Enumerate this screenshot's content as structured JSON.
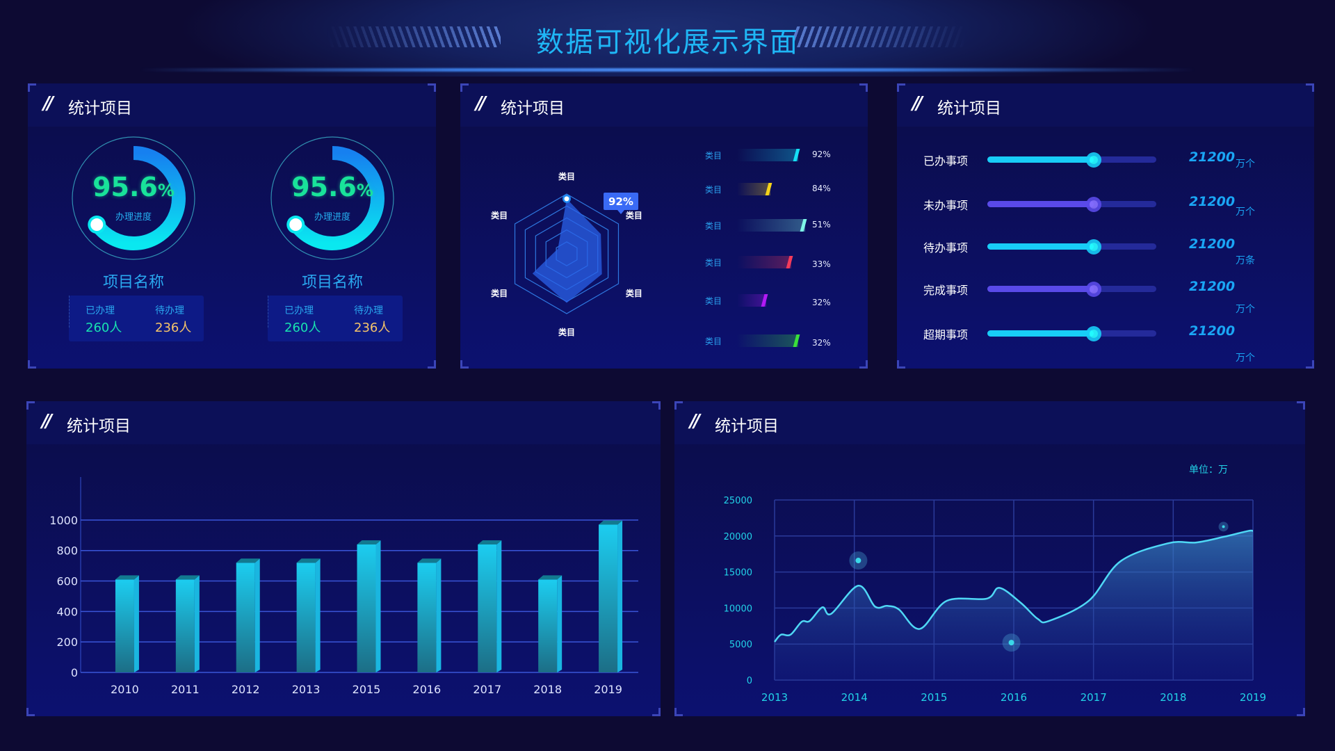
{
  "header": {
    "title": "数据可视化展示界面"
  },
  "panel1": {
    "title": "统计项目",
    "gauges": [
      {
        "value": "95.6",
        "unit": "%",
        "progress": 95.6,
        "caption": "办理进度",
        "name": "项目名称",
        "done_label": "已办理",
        "done_value": "260人",
        "pending_label": "待办理",
        "pending_value": "236人"
      },
      {
        "value": "95.6",
        "unit": "%",
        "progress": 95.6,
        "caption": "办理进度",
        "name": "项目名称",
        "done_label": "已办理",
        "done_value": "260人",
        "pending_label": "待办理",
        "pending_value": "236人"
      }
    ],
    "colors": {
      "value": "#19e39a",
      "done": "#19e3b0",
      "pending": "#f5c46a"
    }
  },
  "panel2": {
    "title": "统计项目",
    "radar": {
      "indicators": [
        "类目",
        "类目",
        "类目",
        "类目",
        "类目",
        "类目"
      ],
      "values": [
        92,
        66,
        68,
        82,
        66,
        17
      ],
      "max": 100,
      "tooltip": "92%"
    },
    "bars": [
      {
        "label": "类目",
        "percent": "92%",
        "fill": 0.88,
        "color": "#16e0f5"
      },
      {
        "label": "类目",
        "percent": "84%",
        "fill": 0.48,
        "color": "#f5d31a"
      },
      {
        "label": "类目",
        "percent": "51%",
        "fill": 0.98,
        "color": "#7ef5e8"
      },
      {
        "label": "类目",
        "percent": "33%",
        "fill": 0.78,
        "color": "#f53a5a"
      },
      {
        "label": "类目",
        "percent": "32%",
        "fill": 0.42,
        "color": "#b21af5"
      },
      {
        "label": "类目",
        "percent": "32%",
        "fill": 0.88,
        "color": "#3ae03a"
      }
    ]
  },
  "panel3": {
    "title": "统计项目",
    "items": [
      {
        "label": "已办事项",
        "value": "21200",
        "unit": "万个",
        "progress": 0.63,
        "color": "#18cdf7"
      },
      {
        "label": "未办事项",
        "value": "21200",
        "unit": "万个",
        "progress": 0.63,
        "color": "#5a4ae8"
      },
      {
        "label": "待办事项",
        "value": "21200",
        "unit": "万条",
        "progress": 0.63,
        "color": "#18cdf7"
      },
      {
        "label": "完成事项",
        "value": "21200",
        "unit": "万个",
        "progress": 0.63,
        "color": "#5a4ae8"
      },
      {
        "label": "超期事项",
        "value": "21200",
        "unit": "万个",
        "progress": 0.63,
        "color": "#18cdf7"
      }
    ]
  },
  "panel4": {
    "title": "统计项目"
  },
  "panel5": {
    "title": "统计项目"
  },
  "chart_data": [
    {
      "type": "bar",
      "categories": [
        "2010",
        "2011",
        "2012",
        "2013",
        "2015",
        "2016",
        "2017",
        "2018",
        "2019"
      ],
      "values": [
        610,
        610,
        720,
        720,
        840,
        720,
        840,
        610,
        970
      ],
      "yticks": [
        "0",
        "200",
        "400",
        "600",
        "800",
        "1000"
      ],
      "ylim": [
        0,
        1100
      ],
      "grid": true,
      "color": "#1bcdf0"
    },
    {
      "type": "area",
      "unit_label": "单位：万",
      "xticks": [
        "2013",
        "2014",
        "2015",
        "2016",
        "2017",
        "2018",
        "2019"
      ],
      "yticks": [
        "0",
        "5000",
        "10000",
        "15000",
        "20000",
        "25000"
      ],
      "xlim": [
        2013,
        2019
      ],
      "ylim": [
        0,
        25000
      ],
      "grid": true,
      "color": "#4fd8f5",
      "points": [
        [
          2013,
          5300
        ],
        [
          2013.08,
          6300
        ],
        [
          2013.2,
          6300
        ],
        [
          2013.34,
          8100
        ],
        [
          2013.44,
          8200
        ],
        [
          2013.6,
          10100
        ],
        [
          2013.71,
          9200
        ],
        [
          2014.05,
          13100
        ],
        [
          2014.26,
          10200
        ],
        [
          2014.41,
          10300
        ],
        [
          2014.56,
          9800
        ],
        [
          2014.82,
          7100
        ],
        [
          2015.16,
          11000
        ],
        [
          2015.66,
          11300
        ],
        [
          2015.82,
          12800
        ],
        [
          2016.09,
          10700
        ],
        [
          2016.3,
          8500
        ],
        [
          2016.44,
          8200
        ],
        [
          2016.94,
          11000
        ],
        [
          2017.34,
          16500
        ],
        [
          2017.94,
          19000
        ],
        [
          2018.29,
          19100
        ],
        [
          2018.64,
          19900
        ],
        [
          2018.94,
          20700
        ],
        [
          2019,
          20700
        ]
      ],
      "markers": [
        [
          2014.05,
          16600
        ],
        [
          2015.97,
          5200
        ],
        [
          2018.63,
          21300
        ]
      ]
    }
  ]
}
